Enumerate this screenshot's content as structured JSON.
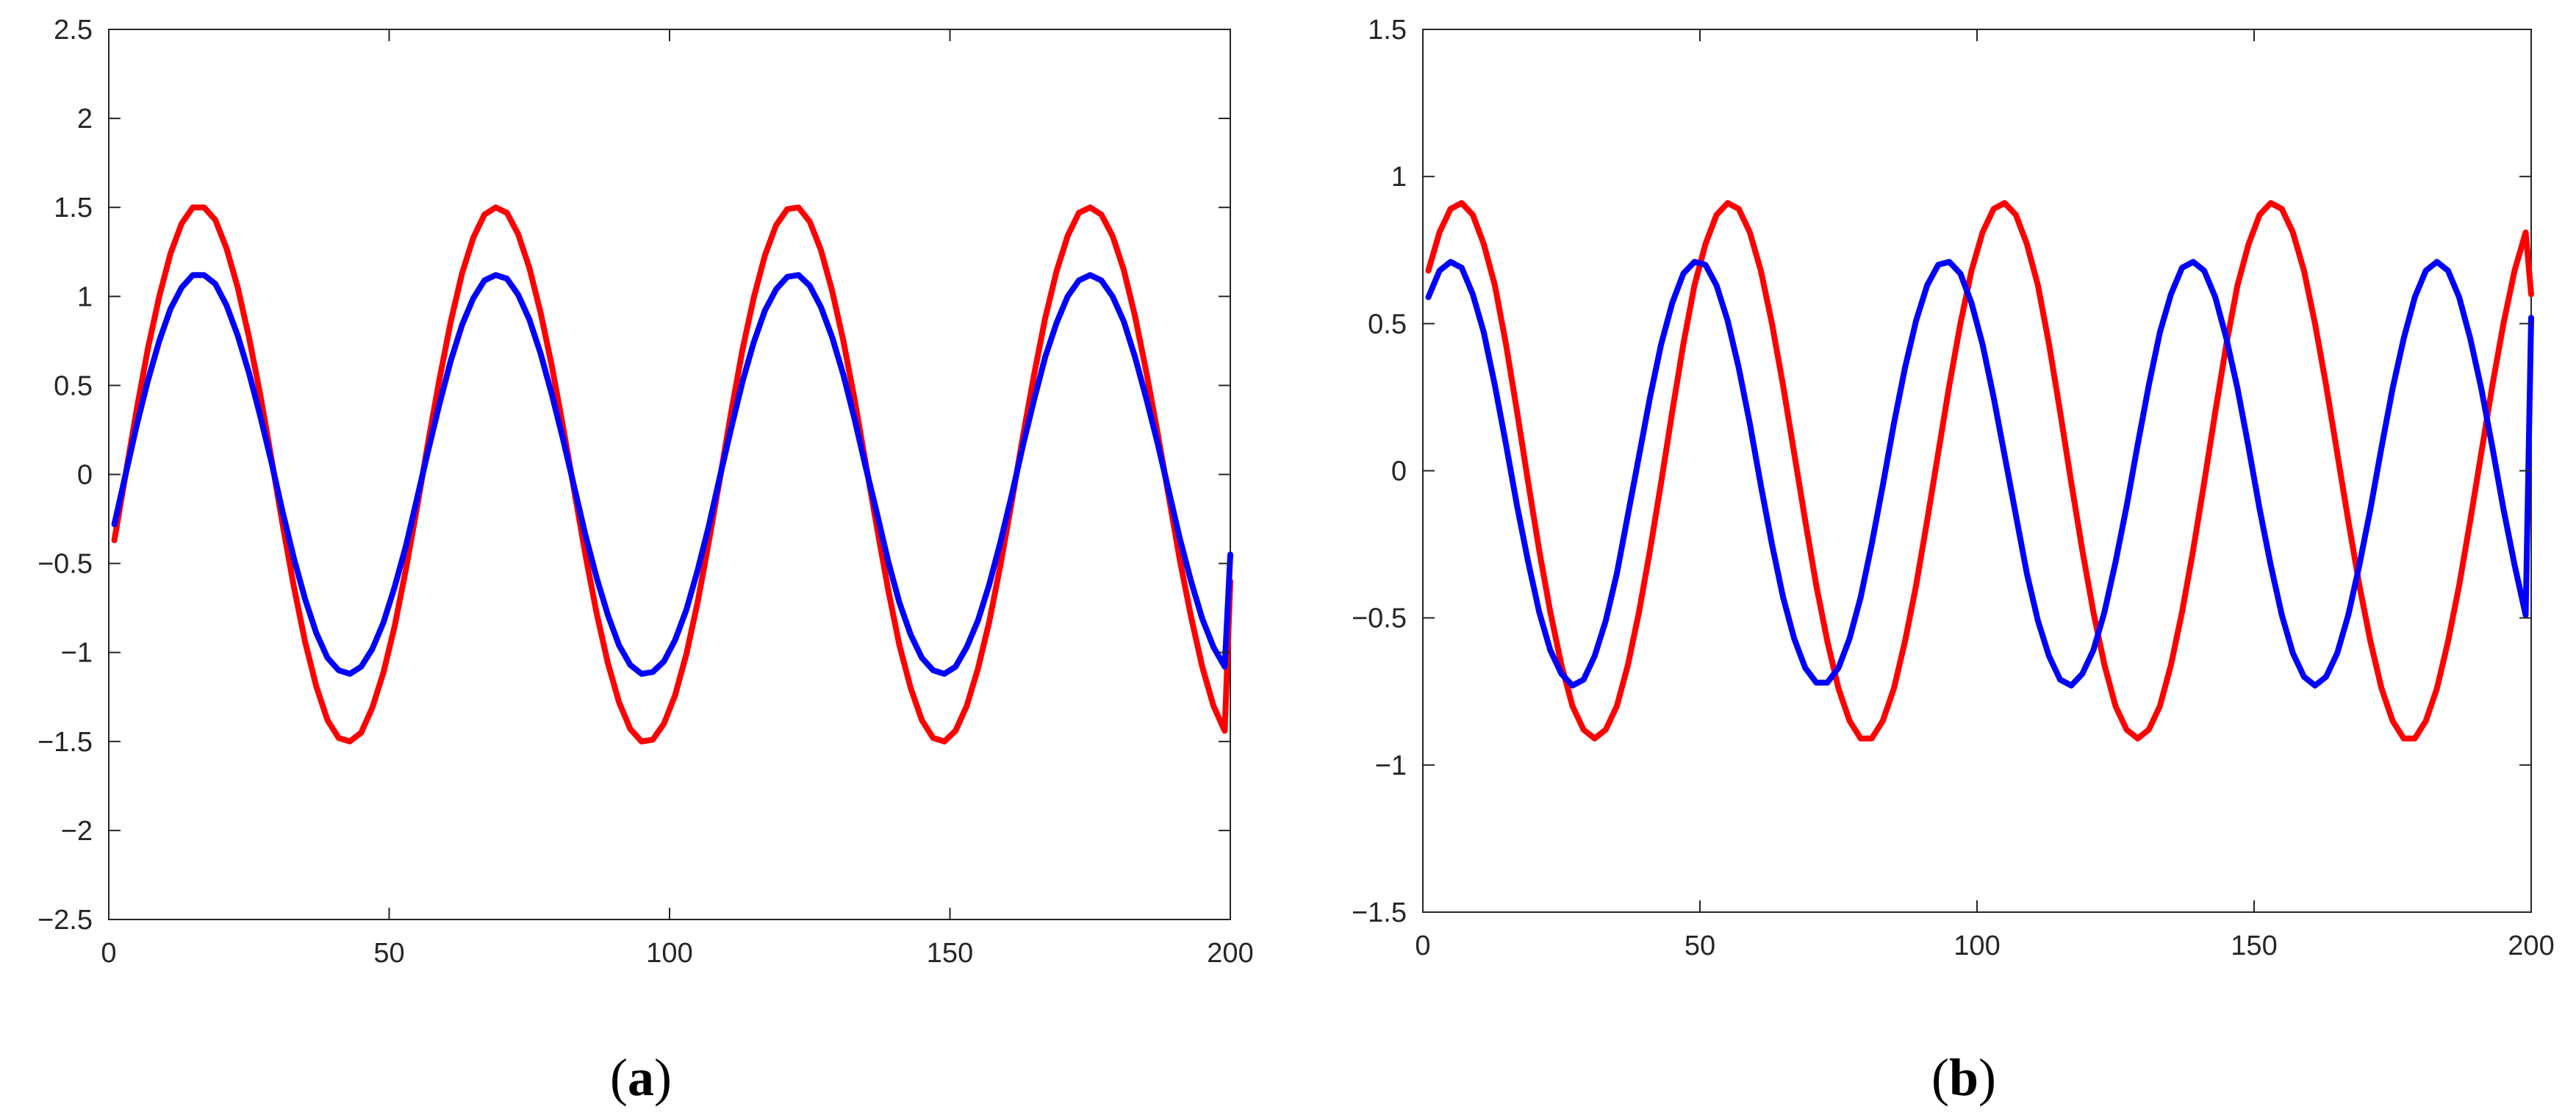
{
  "chart_data": [
    {
      "type": "line",
      "panel_label": "(a)",
      "panel_letter": "a",
      "title": "",
      "xlabel": "",
      "ylabel": "",
      "xlim": [
        0,
        200
      ],
      "ylim": [
        -2.5,
        2.5
      ],
      "grid": false,
      "legend": "none",
      "xticks": [
        0,
        50,
        100,
        150,
        200
      ],
      "xtick_labels": [
        "0",
        "50",
        "100",
        "150",
        "200"
      ],
      "yticks": [
        2.5,
        2,
        1.5,
        1,
        0.5,
        0,
        -0.5,
        -1,
        -1.5,
        -2,
        -2.5
      ],
      "ytick_labels": [
        "2.5",
        "2",
        "1.5",
        "1",
        "0.5",
        "0",
        "−0.5",
        "−1",
        "−1.5",
        "−2",
        "−2.5"
      ],
      "series": [
        {
          "color": "#ff0000",
          "x": [
            1,
            3,
            5,
            7,
            9,
            11,
            13,
            15,
            17,
            19,
            21,
            23,
            25,
            27,
            29,
            31,
            33,
            35,
            37,
            39,
            41,
            43,
            45,
            47,
            49,
            51,
            53,
            55,
            57,
            59,
            61,
            63,
            65,
            67,
            69,
            71,
            73,
            75,
            77,
            79,
            81,
            83,
            85,
            87,
            89,
            91,
            93,
            95,
            97,
            99,
            101,
            103,
            105,
            107,
            109,
            111,
            113,
            115,
            117,
            119,
            121,
            123,
            125,
            127,
            129,
            131,
            133,
            135,
            137,
            139,
            141,
            143,
            145,
            147,
            149,
            151,
            153,
            155,
            157,
            159,
            161,
            163,
            165,
            167,
            169,
            171,
            173,
            175,
            177,
            179,
            181,
            183,
            185,
            187,
            189,
            191,
            193,
            195,
            197,
            199,
            200
          ],
          "y": [
            -0.37,
            0.0,
            0.37,
            0.71,
            1.0,
            1.24,
            1.41,
            1.5,
            1.5,
            1.43,
            1.27,
            1.05,
            0.77,
            0.45,
            0.09,
            -0.28,
            -0.63,
            -0.94,
            -1.19,
            -1.38,
            -1.48,
            -1.5,
            -1.45,
            -1.31,
            -1.11,
            -0.85,
            -0.53,
            -0.18,
            0.19,
            0.54,
            0.86,
            1.13,
            1.33,
            1.46,
            1.5,
            1.47,
            1.35,
            1.16,
            0.91,
            0.61,
            0.27,
            -0.09,
            -0.45,
            -0.78,
            -1.06,
            -1.28,
            -1.43,
            -1.5,
            -1.49,
            -1.4,
            -1.24,
            -1.01,
            -0.72,
            -0.38,
            -0.02,
            0.35,
            0.7,
            0.99,
            1.23,
            1.4,
            1.49,
            1.5,
            1.42,
            1.26,
            1.03,
            0.75,
            0.42,
            0.06,
            -0.3,
            -0.65,
            -0.96,
            -1.2,
            -1.38,
            -1.48,
            -1.5,
            -1.44,
            -1.3,
            -1.09,
            -0.83,
            -0.51,
            -0.16,
            0.21,
            0.56,
            0.88,
            1.14,
            1.34,
            1.47,
            1.5,
            1.46,
            1.34,
            1.15,
            0.89,
            0.58,
            0.24,
            -0.12,
            -0.48,
            -0.8,
            -1.08,
            -1.3,
            -1.44,
            -0.6
          ]
        },
        {
          "color": "#0000ff",
          "x": [
            1,
            3,
            5,
            7,
            9,
            11,
            13,
            15,
            17,
            19,
            21,
            23,
            25,
            27,
            29,
            31,
            33,
            35,
            37,
            39,
            41,
            43,
            45,
            47,
            49,
            51,
            53,
            55,
            57,
            59,
            61,
            63,
            65,
            67,
            69,
            71,
            73,
            75,
            77,
            79,
            81,
            83,
            85,
            87,
            89,
            91,
            93,
            95,
            97,
            99,
            101,
            103,
            105,
            107,
            109,
            111,
            113,
            115,
            117,
            119,
            121,
            123,
            125,
            127,
            129,
            131,
            133,
            135,
            137,
            139,
            141,
            143,
            145,
            147,
            149,
            151,
            153,
            155,
            157,
            159,
            161,
            163,
            165,
            167,
            169,
            171,
            173,
            175,
            177,
            179,
            181,
            183,
            185,
            187,
            189,
            191,
            193,
            195,
            197,
            199,
            200
          ],
          "y": [
            -0.28,
            0.0,
            0.28,
            0.53,
            0.75,
            0.93,
            1.05,
            1.12,
            1.12,
            1.07,
            0.95,
            0.78,
            0.57,
            0.33,
            0.07,
            -0.21,
            -0.47,
            -0.7,
            -0.89,
            -1.03,
            -1.1,
            -1.12,
            -1.08,
            -0.98,
            -0.83,
            -0.63,
            -0.4,
            -0.13,
            0.14,
            0.4,
            0.64,
            0.84,
            0.99,
            1.09,
            1.12,
            1.1,
            1.01,
            0.87,
            0.68,
            0.45,
            0.2,
            -0.07,
            -0.34,
            -0.58,
            -0.79,
            -0.96,
            -1.07,
            -1.12,
            -1.11,
            -1.05,
            -0.93,
            -0.76,
            -0.54,
            -0.29,
            -0.01,
            0.26,
            0.52,
            0.74,
            0.92,
            1.04,
            1.11,
            1.12,
            1.06,
            0.94,
            0.77,
            0.56,
            0.31,
            0.04,
            -0.22,
            -0.49,
            -0.72,
            -0.9,
            -1.03,
            -1.1,
            -1.12,
            -1.08,
            -0.97,
            -0.82,
            -0.62,
            -0.38,
            -0.12,
            0.16,
            0.42,
            0.66,
            0.85,
            1.0,
            1.09,
            1.12,
            1.09,
            1.0,
            0.86,
            0.66,
            0.43,
            0.18,
            -0.09,
            -0.36,
            -0.6,
            -0.81,
            -0.97,
            -1.08,
            -0.45
          ]
        }
      ]
    },
    {
      "type": "line",
      "panel_label": "(b)",
      "panel_letter": "b",
      "title": "",
      "xlabel": "",
      "ylabel": "",
      "xlim": [
        0,
        200
      ],
      "ylim": [
        -1.5,
        1.5
      ],
      "grid": false,
      "legend": "none",
      "xticks": [
        0,
        50,
        100,
        150,
        200
      ],
      "xtick_labels": [
        "0",
        "50",
        "100",
        "150",
        "200"
      ],
      "yticks": [
        1.5,
        1,
        0.5,
        0,
        -0.5,
        -1,
        -1.5
      ],
      "ytick_labels": [
        "1.5",
        "1",
        "0.5",
        "0",
        "−0.5",
        "−1",
        "−1.5"
      ],
      "series": [
        {
          "color": "#ff0000",
          "x": [
            1,
            3,
            5,
            7,
            9,
            11,
            13,
            15,
            17,
            19,
            21,
            23,
            25,
            27,
            29,
            31,
            33,
            35,
            37,
            39,
            41,
            43,
            45,
            47,
            49,
            51,
            53,
            55,
            57,
            59,
            61,
            63,
            65,
            67,
            69,
            71,
            73,
            75,
            77,
            79,
            81,
            83,
            85,
            87,
            89,
            91,
            93,
            95,
            97,
            99,
            101,
            103,
            105,
            107,
            109,
            111,
            113,
            115,
            117,
            119,
            121,
            123,
            125,
            127,
            129,
            131,
            133,
            135,
            137,
            139,
            141,
            143,
            145,
            147,
            149,
            151,
            153,
            155,
            157,
            159,
            161,
            163,
            165,
            167,
            169,
            171,
            173,
            175,
            177,
            179,
            181,
            183,
            185,
            187,
            189,
            191,
            193,
            195,
            197,
            199,
            200
          ],
          "y": [
            0.68,
            0.81,
            0.89,
            0.91,
            0.87,
            0.77,
            0.63,
            0.43,
            0.2,
            -0.04,
            -0.27,
            -0.48,
            -0.66,
            -0.8,
            -0.88,
            -0.91,
            -0.88,
            -0.8,
            -0.66,
            -0.48,
            -0.27,
            -0.04,
            0.2,
            0.43,
            0.63,
            0.77,
            0.87,
            0.91,
            0.89,
            0.81,
            0.68,
            0.5,
            0.29,
            0.06,
            -0.17,
            -0.39,
            -0.58,
            -0.74,
            -0.85,
            -0.91,
            -0.91,
            -0.85,
            -0.74,
            -0.58,
            -0.39,
            -0.17,
            0.06,
            0.29,
            0.5,
            0.68,
            0.81,
            0.89,
            0.91,
            0.87,
            0.77,
            0.63,
            0.43,
            0.2,
            -0.04,
            -0.27,
            -0.48,
            -0.66,
            -0.8,
            -0.88,
            -0.91,
            -0.88,
            -0.8,
            -0.66,
            -0.48,
            -0.27,
            -0.04,
            0.2,
            0.43,
            0.63,
            0.77,
            0.87,
            0.91,
            0.89,
            0.81,
            0.68,
            0.5,
            0.29,
            0.06,
            -0.17,
            -0.39,
            -0.58,
            -0.74,
            -0.85,
            -0.91,
            -0.91,
            -0.85,
            -0.74,
            -0.58,
            -0.39,
            -0.17,
            0.06,
            0.29,
            0.5,
            0.68,
            0.81,
            0.6
          ]
        },
        {
          "color": "#0000ff",
          "x": [
            1,
            3,
            5,
            7,
            9,
            11,
            13,
            15,
            17,
            19,
            21,
            23,
            25,
            27,
            29,
            31,
            33,
            35,
            37,
            39,
            41,
            43,
            45,
            47,
            49,
            51,
            53,
            55,
            57,
            59,
            61,
            63,
            65,
            67,
            69,
            71,
            73,
            75,
            77,
            79,
            81,
            83,
            85,
            87,
            89,
            91,
            93,
            95,
            97,
            99,
            101,
            103,
            105,
            107,
            109,
            111,
            113,
            115,
            117,
            119,
            121,
            123,
            125,
            127,
            129,
            131,
            133,
            135,
            137,
            139,
            141,
            143,
            145,
            147,
            149,
            151,
            153,
            155,
            157,
            159,
            161,
            163,
            165,
            167,
            169,
            171,
            173,
            175,
            177,
            179,
            181,
            183,
            185,
            187,
            189,
            191,
            193,
            195,
            197,
            199,
            200
          ],
          "y": [
            0.59,
            0.68,
            0.71,
            0.69,
            0.6,
            0.47,
            0.29,
            0.09,
            -0.12,
            -0.31,
            -0.48,
            -0.61,
            -0.69,
            -0.73,
            -0.71,
            -0.63,
            -0.51,
            -0.35,
            -0.15,
            0.05,
            0.25,
            0.43,
            0.57,
            0.67,
            0.71,
            0.7,
            0.63,
            0.51,
            0.35,
            0.16,
            -0.05,
            -0.25,
            -0.43,
            -0.57,
            -0.67,
            -0.72,
            -0.72,
            -0.67,
            -0.57,
            -0.43,
            -0.25,
            -0.05,
            0.16,
            0.35,
            0.51,
            0.63,
            0.7,
            0.71,
            0.67,
            0.57,
            0.43,
            0.25,
            0.05,
            -0.15,
            -0.35,
            -0.51,
            -0.63,
            -0.71,
            -0.73,
            -0.69,
            -0.61,
            -0.48,
            -0.31,
            -0.12,
            0.09,
            0.29,
            0.47,
            0.6,
            0.69,
            0.71,
            0.68,
            0.59,
            0.45,
            0.28,
            0.08,
            -0.13,
            -0.32,
            -0.49,
            -0.62,
            -0.7,
            -0.73,
            -0.7,
            -0.62,
            -0.49,
            -0.32,
            -0.13,
            0.08,
            0.28,
            0.45,
            0.59,
            0.68,
            0.71,
            0.68,
            0.59,
            0.45,
            0.28,
            0.08,
            -0.13,
            -0.32,
            -0.49,
            0.52
          ]
        }
      ]
    }
  ]
}
